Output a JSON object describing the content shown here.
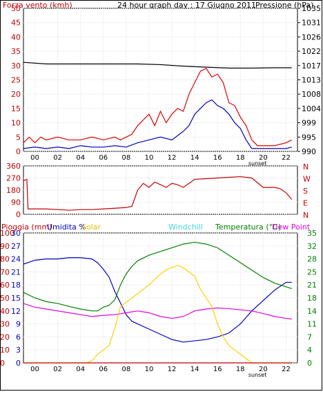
{
  "chart_data": [
    {
      "type": "line",
      "title": "24 hour graph day : 17 Giugno 2011",
      "left_axis_label": "Forza vento (kmh)",
      "right_axis_label": "Pressione (hPa)",
      "x_ticks": [
        "00",
        "02",
        "04",
        "06",
        "08",
        "10",
        "12",
        "14",
        "16",
        "18",
        "20",
        "22"
      ],
      "sunset_label": "sunset",
      "y_left_ticks": [
        "0",
        "5",
        "10",
        "15",
        "20",
        "25",
        "30",
        "35",
        "40",
        "45",
        "50"
      ],
      "y_left_range": [
        0,
        50
      ],
      "y_right_ticks": [
        "990",
        "995",
        "999",
        "1004",
        "1008",
        "1013",
        "1017",
        "1022",
        "1026",
        "1031",
        "1035"
      ],
      "y_right_range": [
        990,
        1035
      ],
      "colors": {
        "gust": "#e00000",
        "wind": "#0000c0",
        "pressure": "#000000",
        "left_axis": "#c00000",
        "right_axis": "#000000"
      },
      "series": [
        {
          "name": "gust",
          "points": [
            [
              0,
              3
            ],
            [
              0.5,
              5
            ],
            [
              1,
              3
            ],
            [
              1.5,
              5
            ],
            [
              2,
              4
            ],
            [
              3,
              5
            ],
            [
              4,
              4
            ],
            [
              5,
              4
            ],
            [
              6,
              5
            ],
            [
              7,
              4
            ],
            [
              8,
              5
            ],
            [
              8.5,
              4
            ],
            [
              9,
              5
            ],
            [
              9.5,
              6
            ],
            [
              10,
              9
            ],
            [
              10.5,
              11
            ],
            [
              11,
              13
            ],
            [
              11.5,
              9
            ],
            [
              12,
              14
            ],
            [
              12.5,
              10
            ],
            [
              13,
              13
            ],
            [
              13.5,
              15
            ],
            [
              14,
              14
            ],
            [
              14.5,
              20
            ],
            [
              15,
              24
            ],
            [
              15.5,
              28
            ],
            [
              16,
              29
            ],
            [
              16.5,
              26
            ],
            [
              17,
              27
            ],
            [
              17.5,
              24
            ],
            [
              18,
              17
            ],
            [
              18.5,
              16
            ],
            [
              19,
              12
            ],
            [
              19.5,
              9
            ],
            [
              20,
              4
            ],
            [
              20.5,
              2
            ],
            [
              21,
              2
            ],
            [
              22,
              2
            ],
            [
              23,
              3
            ],
            [
              23.5,
              4
            ]
          ]
        },
        {
          "name": "wind",
          "points": [
            [
              0,
              1
            ],
            [
              1,
              1.5
            ],
            [
              2,
              1
            ],
            [
              3,
              1.5
            ],
            [
              4,
              1
            ],
            [
              5,
              2
            ],
            [
              6,
              1.5
            ],
            [
              7,
              1.5
            ],
            [
              8,
              2
            ],
            [
              9,
              1.5
            ],
            [
              10,
              3
            ],
            [
              11,
              4
            ],
            [
              12,
              5
            ],
            [
              13,
              4
            ],
            [
              14,
              7
            ],
            [
              14.5,
              9
            ],
            [
              15,
              13
            ],
            [
              15.5,
              15
            ],
            [
              16,
              17
            ],
            [
              16.5,
              18
            ],
            [
              17,
              16
            ],
            [
              17.5,
              15
            ],
            [
              18,
              13
            ],
            [
              18.5,
              10
            ],
            [
              19,
              8
            ],
            [
              19.5,
              4
            ],
            [
              20,
              1
            ],
            [
              21,
              1
            ],
            [
              22,
              1
            ],
            [
              23,
              1
            ],
            [
              23.5,
              1.5
            ]
          ]
        },
        {
          "name": "pressure",
          "points": [
            [
              0,
              1018
            ],
            [
              2,
              1017.5
            ],
            [
              4,
              1017.5
            ],
            [
              6,
              1017.5
            ],
            [
              8,
              1017.5
            ],
            [
              10,
              1017.5
            ],
            [
              12,
              1017.3
            ],
            [
              14,
              1016.8
            ],
            [
              16,
              1016.5
            ],
            [
              18,
              1016.2
            ],
            [
              20,
              1016.2
            ],
            [
              22,
              1016.3
            ],
            [
              23.5,
              1016.3
            ]
          ]
        }
      ]
    },
    {
      "type": "line",
      "left_ticks": [
        "360",
        "270",
        "180",
        "90",
        "0"
      ],
      "y_range": [
        0,
        360
      ],
      "right_ticks": [
        "N",
        "W",
        "S",
        "E",
        "N"
      ],
      "colors": {
        "direction": "#c00000"
      },
      "series": [
        {
          "name": "direction",
          "points": [
            [
              0,
              250
            ],
            [
              0.3,
              260
            ],
            [
              0.4,
              40
            ],
            [
              1,
              40
            ],
            [
              2,
              40
            ],
            [
              3,
              35
            ],
            [
              4,
              30
            ],
            [
              5,
              35
            ],
            [
              6,
              35
            ],
            [
              7,
              40
            ],
            [
              8,
              45
            ],
            [
              9,
              50
            ],
            [
              9.5,
              60
            ],
            [
              10,
              180
            ],
            [
              10.5,
              230
            ],
            [
              11,
              200
            ],
            [
              11.5,
              240
            ],
            [
              12,
              220
            ],
            [
              12.5,
              200
            ],
            [
              13,
              230
            ],
            [
              13.5,
              220
            ],
            [
              14,
              200
            ],
            [
              14.5,
              230
            ],
            [
              15,
              260
            ],
            [
              16,
              265
            ],
            [
              17,
              270
            ],
            [
              18,
              275
            ],
            [
              19,
              280
            ],
            [
              20,
              270
            ],
            [
              21,
              200
            ],
            [
              22,
              200
            ],
            [
              22.5,
              190
            ],
            [
              23,
              160
            ],
            [
              23.5,
              110
            ]
          ]
        }
      ]
    },
    {
      "type": "line",
      "labels": {
        "rain": "Pioggia (mm)",
        "humidity": "Umidita %",
        "solar": "Solar",
        "windchill": "Windchill",
        "temperature": "Temperatura (°C)",
        "dewpoint": "Dew Point"
      },
      "axis_rain_ticks": [
        "0",
        "10",
        "20",
        "30",
        "40",
        "50",
        "60",
        "70",
        "80",
        "90",
        "100"
      ],
      "axis_humidity_ticks": [
        "0",
        "3",
        "6",
        "9",
        "12",
        "15",
        "18",
        "21",
        "24",
        "27",
        "30"
      ],
      "axis_temp_ticks": [
        "0",
        "4",
        "7",
        "11",
        "14",
        "18",
        "21",
        "25",
        "28",
        "32",
        "35"
      ],
      "temp_range": [
        0,
        35
      ],
      "colors": {
        "rain": "#c00000",
        "humidity": "#0000c0",
        "solar": "#ffd000",
        "windchill": "#00c0c0",
        "temperature": "#008000",
        "dewpoint": "#e000e0",
        "right_axis": "#008000"
      },
      "series": [
        {
          "name": "humidity",
          "unit": "%",
          "points": [
            [
              0,
              76
            ],
            [
              1,
              79
            ],
            [
              2,
              80
            ],
            [
              3,
              80
            ],
            [
              4,
              81
            ],
            [
              5,
              81
            ],
            [
              6,
              80
            ],
            [
              6.5,
              77
            ],
            [
              7,
              72
            ],
            [
              7.5,
              66
            ],
            [
              8,
              55
            ],
            [
              8.5,
              46
            ],
            [
              9,
              37
            ],
            [
              9.5,
              32
            ],
            [
              10,
              30
            ],
            [
              11,
              26
            ],
            [
              12,
              22
            ],
            [
              13,
              18
            ],
            [
              14,
              16
            ],
            [
              15,
              17
            ],
            [
              16,
              18
            ],
            [
              17,
              20
            ],
            [
              18,
              23
            ],
            [
              19,
              30
            ],
            [
              20,
              40
            ],
            [
              21,
              48
            ],
            [
              22,
              56
            ],
            [
              23,
              62
            ],
            [
              23.5,
              62
            ]
          ]
        },
        {
          "name": "temperature",
          "unit": "°C",
          "points": [
            [
              0,
              19
            ],
            [
              1,
              17.5
            ],
            [
              2,
              16.5
            ],
            [
              3,
              16
            ],
            [
              4,
              15.2
            ],
            [
              5,
              14.5
            ],
            [
              6,
              14
            ],
            [
              6.5,
              14
            ],
            [
              7,
              15
            ],
            [
              7.5,
              15.5
            ],
            [
              8,
              17
            ],
            [
              8.5,
              21
            ],
            [
              9,
              24
            ],
            [
              9.5,
              26
            ],
            [
              10,
              27.5
            ],
            [
              11,
              29
            ],
            [
              12,
              30
            ],
            [
              13,
              31
            ],
            [
              14,
              32
            ],
            [
              15,
              32.5
            ],
            [
              16,
              32
            ],
            [
              17,
              31
            ],
            [
              18,
              29
            ],
            [
              19,
              27
            ],
            [
              20,
              25
            ],
            [
              21,
              23
            ],
            [
              22,
              21.5
            ],
            [
              23,
              20.5
            ],
            [
              23.5,
              20
            ]
          ]
        },
        {
          "name": "dewpoint",
          "unit": "°C",
          "points": [
            [
              0,
              16
            ],
            [
              1,
              15
            ],
            [
              2,
              14.5
            ],
            [
              3,
              14
            ],
            [
              4,
              13.5
            ],
            [
              5,
              13
            ],
            [
              6,
              12.5
            ],
            [
              7,
              12.8
            ],
            [
              8,
              13
            ],
            [
              9,
              13.5
            ],
            [
              10,
              14
            ],
            [
              11,
              13.5
            ],
            [
              12,
              12.5
            ],
            [
              13,
              12
            ],
            [
              14,
              12.5
            ],
            [
              15,
              14
            ],
            [
              16,
              14.5
            ],
            [
              17,
              14.8
            ],
            [
              18,
              14.6
            ],
            [
              19,
              14.3
            ],
            [
              20,
              14
            ],
            [
              21,
              13.3
            ],
            [
              22,
              12.5
            ],
            [
              23,
              12
            ],
            [
              23.5,
              11.8
            ]
          ]
        },
        {
          "name": "solar",
          "points": [
            [
              0,
              0
            ],
            [
              5.5,
              0
            ],
            [
              6,
              0.5
            ],
            [
              6.5,
              2
            ],
            [
              7,
              3
            ],
            [
              7.5,
              4
            ],
            [
              8,
              8
            ],
            [
              8.5,
              13
            ],
            [
              9,
              14
            ],
            [
              10,
              16
            ],
            [
              11,
              18
            ],
            [
              12,
              20.5
            ],
            [
              12.5,
              21.5
            ],
            [
              13,
              22
            ],
            [
              13.5,
              22.5
            ],
            [
              14,
              22
            ],
            [
              14.5,
              21
            ],
            [
              15,
              20
            ],
            [
              15.5,
              17
            ],
            [
              16,
              15
            ],
            [
              16.5,
              13
            ],
            [
              17,
              9
            ],
            [
              17.5,
              6
            ],
            [
              18,
              4
            ],
            [
              18.5,
              3
            ],
            [
              19,
              2
            ],
            [
              19.5,
              1
            ],
            [
              20,
              0
            ],
            [
              23.5,
              0
            ]
          ]
        },
        {
          "name": "rain",
          "unit": "mm",
          "points": [
            [
              0,
              0
            ],
            [
              23.5,
              0
            ]
          ]
        }
      ]
    }
  ]
}
